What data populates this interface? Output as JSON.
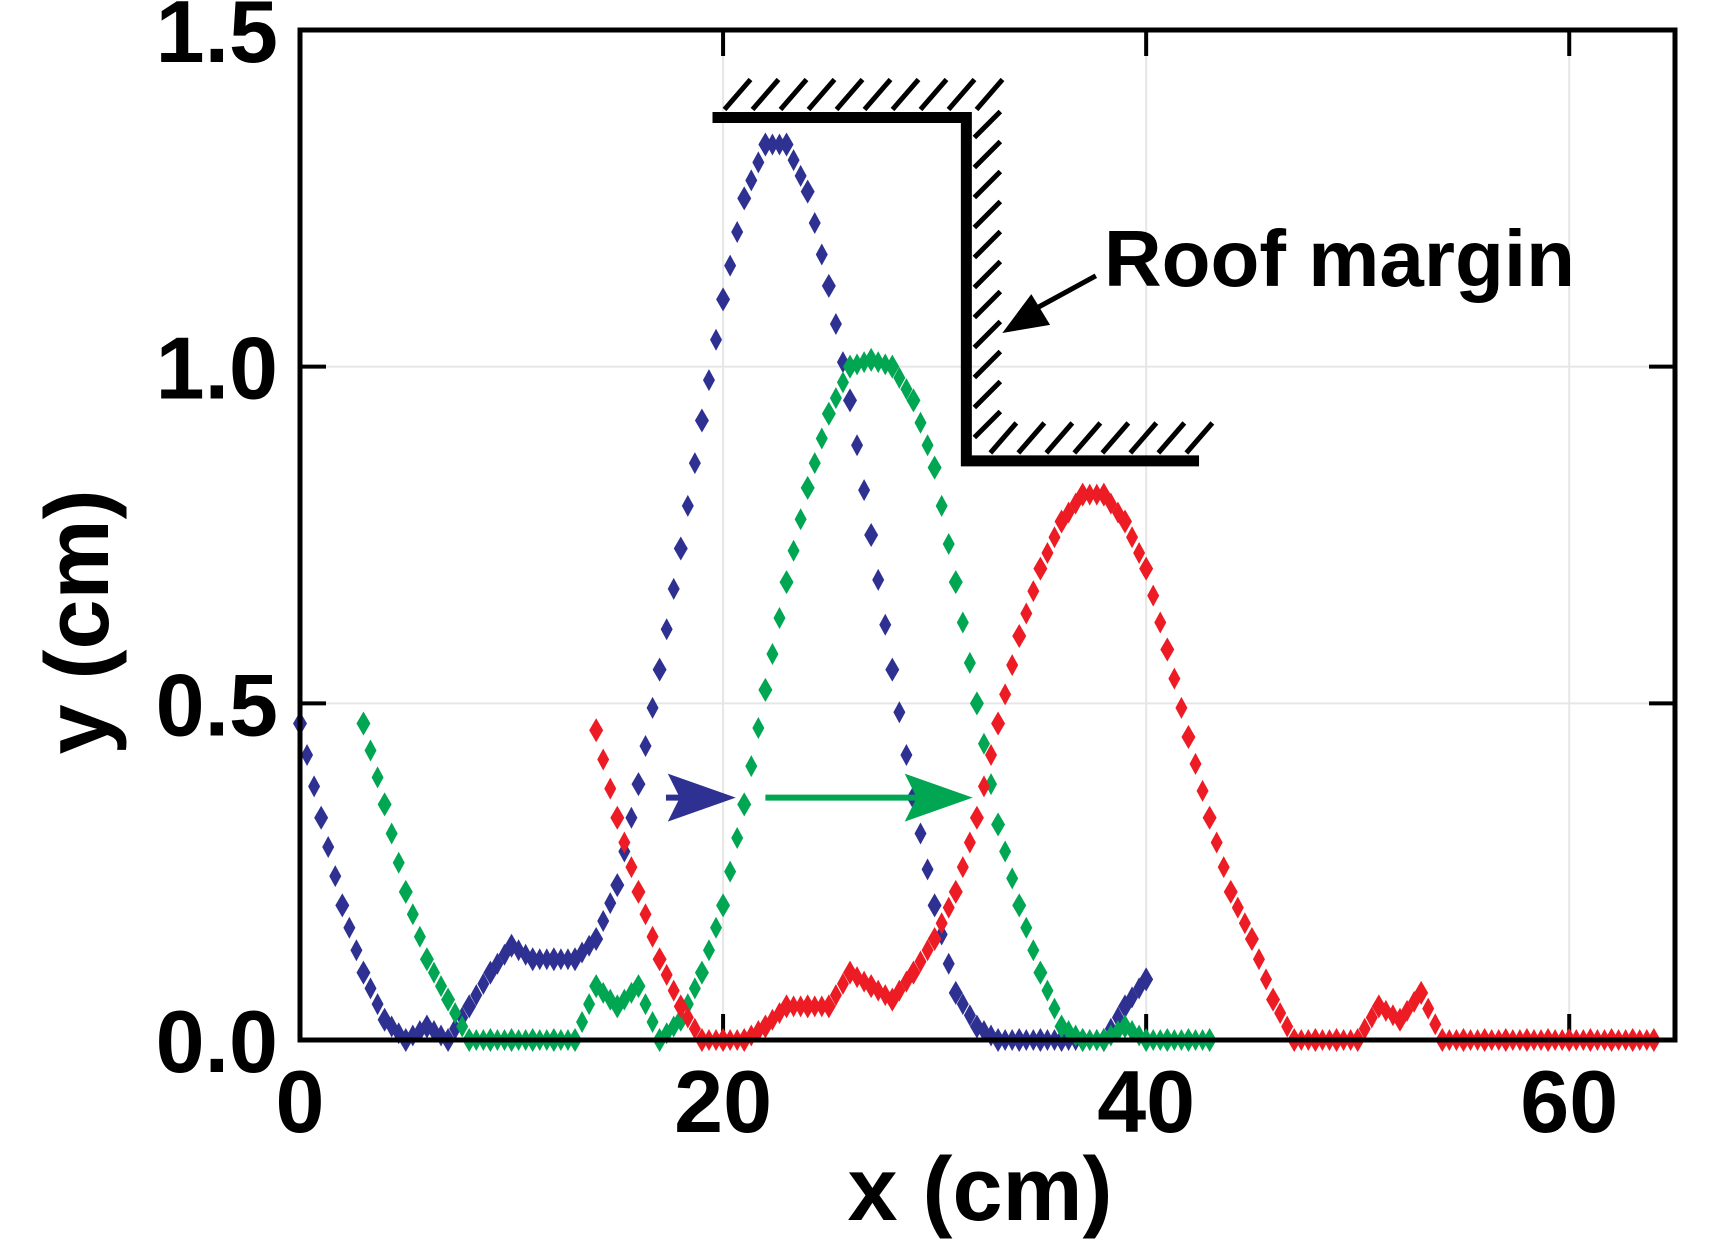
{
  "chart_data": {
    "type": "scatter",
    "title": "",
    "xlabel": "x (cm)",
    "ylabel": "y (cm)",
    "xlim": [
      0,
      65
    ],
    "ylim": [
      0,
      1.5
    ],
    "x_ticks": [
      0,
      20,
      40,
      60
    ],
    "x_tick_labels": [
      "0",
      "20",
      "40",
      "60"
    ],
    "y_ticks": [
      0,
      0.5,
      1.0,
      1.5
    ],
    "y_tick_labels": [
      "0.0",
      "0.5",
      "1.0",
      "1.5"
    ],
    "grid": true,
    "legend": "none",
    "series": [
      {
        "color": "#2e3192",
        "x": [
          0,
          1,
          2,
          3,
          4,
          5,
          6,
          7,
          8,
          9,
          10,
          11,
          12,
          13,
          14,
          15,
          16,
          17,
          18,
          19,
          20,
          21,
          22,
          23,
          24,
          25,
          26,
          27,
          28,
          29,
          30,
          31,
          32,
          33,
          34,
          35,
          36,
          37,
          38,
          39,
          40
        ],
        "y": [
          0.47,
          0.33,
          0.2,
          0.1,
          0.03,
          0.0,
          0.02,
          0.0,
          0.05,
          0.1,
          0.14,
          0.12,
          0.12,
          0.12,
          0.15,
          0.23,
          0.38,
          0.55,
          0.73,
          0.92,
          1.1,
          1.25,
          1.33,
          1.33,
          1.26,
          1.12,
          0.95,
          0.75,
          0.55,
          0.36,
          0.2,
          0.07,
          0.02,
          0.0,
          0.0,
          0.0,
          0.0,
          0.0,
          0.0,
          0.05,
          0.09
        ]
      },
      {
        "color": "#00a651",
        "x": [
          3,
          4,
          5,
          6,
          7,
          8,
          9,
          10,
          11,
          12,
          13,
          14,
          15,
          16,
          17,
          18,
          19,
          20,
          21,
          22,
          23,
          24,
          25,
          26,
          27,
          28,
          29,
          30,
          31,
          32,
          33,
          34,
          35,
          36,
          37,
          38,
          39,
          40,
          41,
          42,
          43
        ],
        "y": [
          0.47,
          0.35,
          0.22,
          0.12,
          0.06,
          0.0,
          0.0,
          0.0,
          0.0,
          0.0,
          0.0,
          0.08,
          0.05,
          0.08,
          0.0,
          0.03,
          0.1,
          0.2,
          0.35,
          0.52,
          0.68,
          0.82,
          0.93,
          1.0,
          1.01,
          1.0,
          0.95,
          0.85,
          0.68,
          0.5,
          0.32,
          0.2,
          0.1,
          0.02,
          0.0,
          0.0,
          0.02,
          0.0,
          0.0,
          0.0,
          0.0
        ]
      },
      {
        "color": "#ed1c24",
        "x": [
          14,
          15,
          16,
          17,
          18,
          19,
          20,
          21,
          22,
          23,
          24,
          25,
          26,
          27,
          28,
          29,
          30,
          31,
          32,
          33,
          34,
          35,
          36,
          37,
          38,
          39,
          40,
          41,
          42,
          43,
          44,
          45,
          46,
          47,
          48,
          49,
          50,
          51,
          52,
          53,
          54,
          55,
          56,
          57,
          58,
          59,
          60,
          61,
          62,
          63,
          64
        ],
        "y": [
          0.46,
          0.33,
          0.22,
          0.12,
          0.05,
          0.0,
          0.0,
          0.0,
          0.02,
          0.05,
          0.05,
          0.05,
          0.1,
          0.08,
          0.06,
          0.1,
          0.15,
          0.22,
          0.33,
          0.47,
          0.6,
          0.7,
          0.77,
          0.81,
          0.81,
          0.77,
          0.7,
          0.58,
          0.45,
          0.33,
          0.22,
          0.15,
          0.06,
          0.0,
          0.0,
          0.0,
          0.0,
          0.05,
          0.03,
          0.07,
          0.0,
          0.0,
          0.0,
          0.0,
          0.0,
          0.0,
          0.0,
          0.0,
          0.0,
          0.0,
          0.0
        ]
      }
    ],
    "arrows": [
      {
        "color": "#2e3192",
        "x_start": 17.3,
        "x_end": 20.6,
        "y": 0.36
      },
      {
        "color": "#00a651",
        "x_start": 22.0,
        "x_end": 31.8,
        "y": 0.36
      }
    ],
    "roof_step": {
      "upper_x": [
        19.5,
        31.5
      ],
      "upper_y": 1.37,
      "lower_x": [
        31.5,
        42.5
      ],
      "lower_y": 0.86
    },
    "annotations": [
      {
        "text": "Roof margin",
        "x": 38,
        "y": 1.12,
        "arrow_to_x": 33.2,
        "arrow_to_y": 1.05
      }
    ]
  }
}
